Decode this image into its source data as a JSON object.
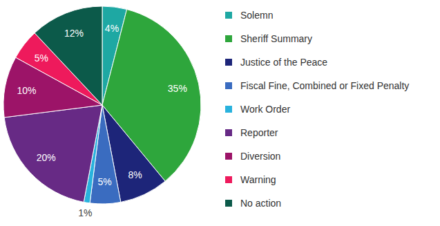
{
  "chart_data": {
    "type": "pie",
    "categories": [
      "Solemn",
      "Sheriff Summary",
      "Justice of the Peace",
      "Fiscal Fine, Combined or Fixed Penalty",
      "Work Order",
      "Reporter",
      "Diversion",
      "Warning",
      "No action"
    ],
    "values": [
      4,
      35,
      8,
      5,
      1,
      20,
      10,
      5,
      12
    ],
    "value_labels": [
      "4%",
      "35%",
      "8%",
      "5%",
      "1%",
      "20%",
      "10%",
      "5%",
      "12%"
    ],
    "colors": [
      "#1ea8a3",
      "#2ea63c",
      "#1d2579",
      "#3a6cc0",
      "#29b2dd",
      "#672a85",
      "#9c1468",
      "#ee1a5c",
      "#0c5a4a"
    ],
    "data_labels": true,
    "legend": "right"
  }
}
